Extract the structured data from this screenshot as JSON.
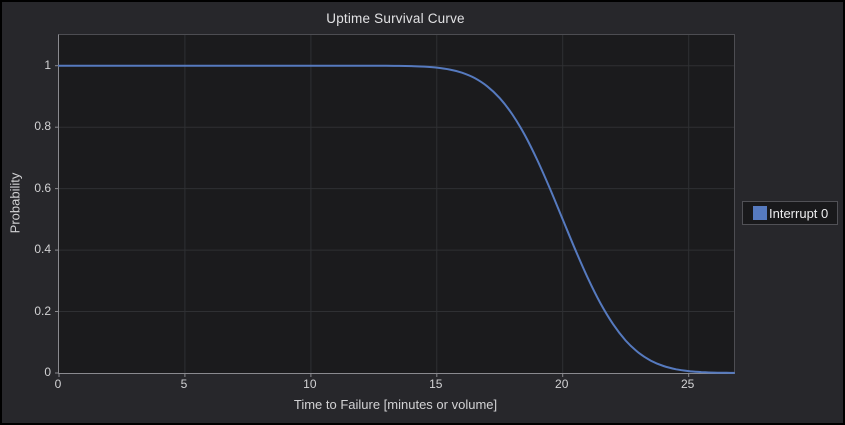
{
  "chart_data": {
    "type": "line",
    "title": "Uptime Survival Curve",
    "xlabel": "Time to Failure [minutes or volume]",
    "ylabel": "Probability",
    "xlim": [
      0,
      26.8
    ],
    "ylim": [
      0,
      1.1
    ],
    "xticks": {
      "values": [
        0,
        5,
        10,
        15,
        20,
        25
      ],
      "labels": [
        "0",
        "5",
        "10",
        "15",
        "20",
        "25"
      ]
    },
    "yticks": {
      "values": [
        0,
        0.2,
        0.4,
        0.6,
        0.8,
        1
      ],
      "labels": [
        "0",
        "0.2",
        "0.4",
        "0.6",
        "0.8",
        "1"
      ]
    },
    "grid": true,
    "legend": {
      "position": "right-center",
      "items": [
        {
          "label": "Interrupt 0",
          "color": "#567abf"
        }
      ]
    },
    "series": [
      {
        "name": "Interrupt 0",
        "color": "#567abf",
        "points": [
          [
            0,
            1.0
          ],
          [
            3,
            1.0
          ],
          [
            6,
            1.0
          ],
          [
            9,
            1.0
          ],
          [
            12,
            1.0
          ],
          [
            13,
            0.9999
          ],
          [
            13.5,
            0.9994
          ],
          [
            14,
            0.9987
          ],
          [
            14.5,
            0.997
          ],
          [
            15,
            0.9938
          ],
          [
            15.5,
            0.9878
          ],
          [
            16,
            0.9772
          ],
          [
            16.5,
            0.9599
          ],
          [
            17,
            0.9332
          ],
          [
            17.5,
            0.8944
          ],
          [
            18,
            0.8413
          ],
          [
            18.5,
            0.7734
          ],
          [
            19,
            0.6915
          ],
          [
            19.5,
            0.5987
          ],
          [
            20,
            0.5
          ],
          [
            20.5,
            0.4013
          ],
          [
            21,
            0.3085
          ],
          [
            21.5,
            0.2266
          ],
          [
            22,
            0.1587
          ],
          [
            22.5,
            0.1056
          ],
          [
            23,
            0.0668
          ],
          [
            23.5,
            0.0401
          ],
          [
            24,
            0.0228
          ],
          [
            24.5,
            0.0122
          ],
          [
            25,
            0.0062
          ],
          [
            25.5,
            0.003
          ],
          [
            26,
            0.0013
          ],
          [
            26.5,
            0.0006
          ],
          [
            26.8,
            0.0004
          ]
        ]
      }
    ]
  },
  "colors": {
    "series_blue": "#567abf",
    "outer_background": "#27272b",
    "plot_background": "#1b1b1d",
    "gridline": "#2f3033",
    "axis_line": "#8a8a8f",
    "frame_line": "#4d4d52",
    "text": "#d2d2d4",
    "legend_border": "#515156",
    "legend_background": "#19191b",
    "window_frame": "#000000"
  }
}
